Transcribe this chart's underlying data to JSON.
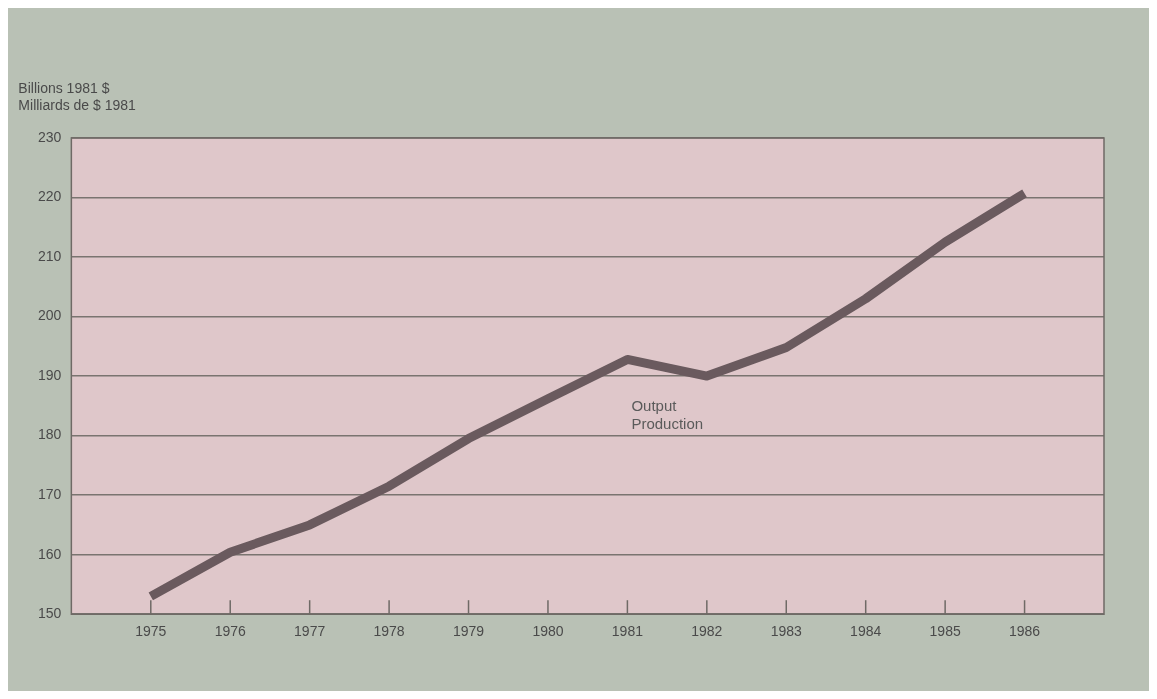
{
  "chart_data": {
    "type": "line",
    "ylabel": "Billions 1981 $\nMilliards de $ 1981",
    "categories": [
      "1975",
      "1976",
      "1977",
      "1978",
      "1979",
      "1980",
      "1981",
      "1982",
      "1983",
      "1984",
      "1985",
      "1986"
    ],
    "series": [
      {
        "name": "Output\nProduction",
        "color": "#6a5a5e",
        "values": [
          153,
          160.4,
          165,
          171.5,
          179.5,
          186.2,
          192.8,
          190,
          194.8,
          203,
          212.5,
          220.7
        ]
      }
    ],
    "ylim": [
      150,
      230
    ],
    "yticks": [
      150,
      160,
      170,
      180,
      190,
      200,
      210,
      220,
      230
    ],
    "grid": "y",
    "legend": false,
    "marker": "none",
    "line_style": "solid"
  }
}
